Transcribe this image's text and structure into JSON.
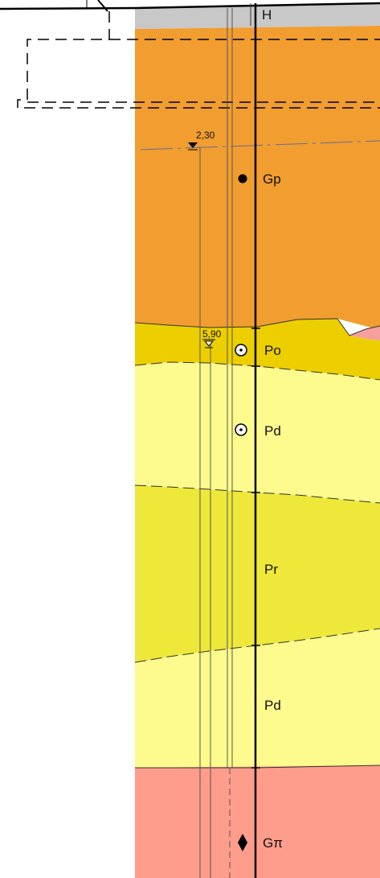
{
  "top_marker": "H",
  "levels": [
    {
      "id": "groundwater-level-1",
      "value": "2,30"
    },
    {
      "id": "groundwater-level-2",
      "value": "5,90"
    }
  ],
  "layers": [
    {
      "code": "Gp",
      "color": "#f19d30",
      "symbol": "filled-dot"
    },
    {
      "code": "Po",
      "color": "#edcf00",
      "symbol": "circle-dot"
    },
    {
      "code": "Pd",
      "color": "#fdfb8d",
      "symbol": "circle-dot"
    },
    {
      "code": "Pr",
      "color": "#ede83a",
      "symbol": "none"
    },
    {
      "code": "Pd",
      "color": "#fdfb8d",
      "symbol": "none"
    },
    {
      "code": "Gπ",
      "color": "#fe9d8b",
      "symbol": "diamond-dot"
    }
  ],
  "colors": {
    "fill_top": "#c8c8c8",
    "lens": "#f5a09a"
  }
}
